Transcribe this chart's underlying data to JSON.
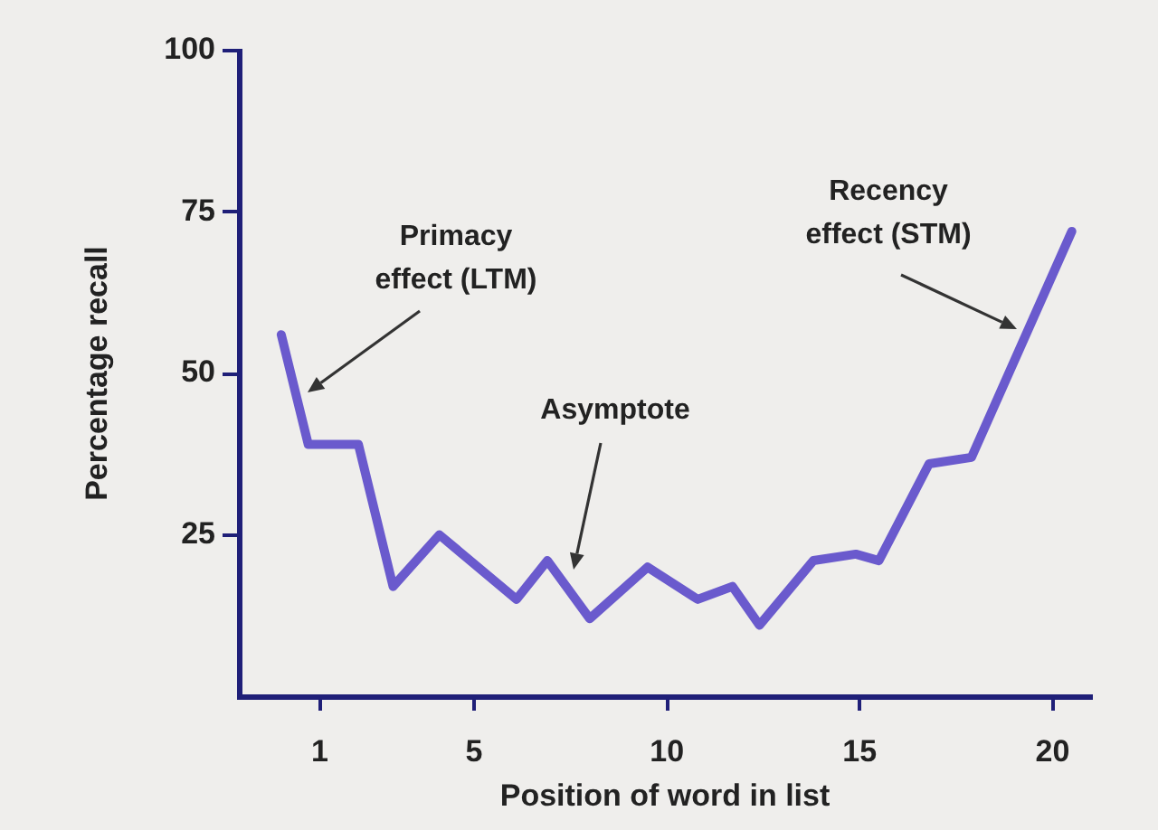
{
  "chart_data": {
    "type": "line",
    "xlabel": "Position of word in list",
    "ylabel": "Percentage recall",
    "xlim": [
      -1.1,
      21
    ],
    "xticks": [
      1,
      5,
      10,
      15,
      20
    ],
    "ylim": [
      0,
      100
    ],
    "yticks": [
      25,
      50,
      75,
      100
    ],
    "marker": "none",
    "line_style": "solid",
    "series": [
      {
        "color": "#6a5acd",
        "x": [
          0,
          0.7,
          2,
          2.9,
          4.1,
          6.1,
          6.9,
          8,
          9.5,
          10.8,
          11.7,
          12.4,
          13.8,
          14.9,
          15.5,
          16.8,
          17.9,
          20.5
        ],
        "values": [
          56,
          39,
          39,
          17,
          25,
          15,
          21,
          12,
          20,
          15,
          17,
          11,
          21,
          22,
          21,
          36,
          37,
          72
        ]
      }
    ],
    "annotations": [
      "Primacy effect (LTM)",
      "Asymptote",
      "Recency effect (STM)"
    ]
  }
}
